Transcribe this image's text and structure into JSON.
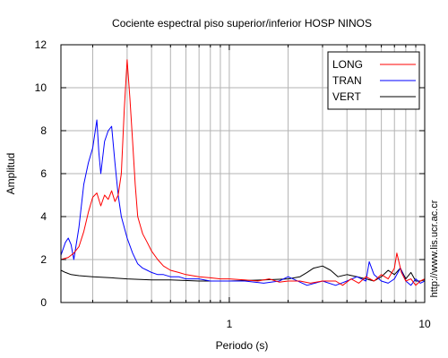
{
  "chart_data": {
    "type": "line",
    "title": "Cociente espectral piso superior/inferior  HOSP NINOS",
    "xlabel": "Periodo (s)",
    "ylabel": "Amplitud",
    "x_scale": "log",
    "xlim": [
      0.1375,
      10
    ],
    "ylim": [
      0,
      12
    ],
    "x_ticks": [
      {
        "value": 1,
        "label": "1"
      },
      {
        "value": 10,
        "label": "10"
      }
    ],
    "y_ticks": [
      {
        "value": 0,
        "label": "0"
      },
      {
        "value": 2,
        "label": "2"
      },
      {
        "value": 4,
        "label": "4"
      },
      {
        "value": 6,
        "label": "6"
      },
      {
        "value": 8,
        "label": "8"
      },
      {
        "value": 10,
        "label": "10"
      },
      {
        "value": 12,
        "label": "12"
      }
    ],
    "grid": true,
    "legend_position": "top-right",
    "side_text": "http://www.lis.ucr.ac.cr",
    "series": [
      {
        "name": "LONG",
        "color": "#ff0000",
        "x": [
          0.1375,
          0.15,
          0.16,
          0.17,
          0.18,
          0.19,
          0.2,
          0.21,
          0.22,
          0.23,
          0.24,
          0.25,
          0.26,
          0.27,
          0.28,
          0.29,
          0.3,
          0.31,
          0.32,
          0.33,
          0.34,
          0.36,
          0.38,
          0.4,
          0.43,
          0.46,
          0.5,
          0.55,
          0.6,
          0.7,
          0.8,
          0.9,
          1.0,
          1.2,
          1.4,
          1.6,
          1.8,
          2.0,
          2.3,
          2.6,
          3.0,
          3.5,
          3.8,
          4.2,
          4.6,
          5.0,
          5.5,
          6.0,
          6.5,
          7.0,
          7.2,
          7.6,
          8.0,
          8.5,
          9.0,
          9.5,
          10.0
        ],
        "y": [
          2.0,
          2.1,
          2.3,
          2.6,
          3.3,
          4.2,
          4.9,
          5.1,
          4.5,
          5.0,
          4.8,
          5.2,
          4.7,
          5.0,
          6.0,
          9.0,
          11.3,
          9.5,
          7.5,
          5.5,
          4.0,
          3.2,
          2.8,
          2.4,
          2.0,
          1.7,
          1.5,
          1.4,
          1.3,
          1.2,
          1.15,
          1.1,
          1.1,
          1.05,
          1.0,
          1.1,
          0.95,
          1.0,
          1.0,
          0.9,
          1.0,
          1.0,
          0.8,
          1.1,
          0.9,
          1.2,
          1.0,
          1.3,
          1.1,
          1.6,
          2.3,
          1.4,
          1.0,
          1.1,
          0.8,
          1.0,
          1.1
        ]
      },
      {
        "name": "TRAN",
        "color": "#0000ff",
        "x": [
          0.1375,
          0.145,
          0.15,
          0.155,
          0.16,
          0.17,
          0.18,
          0.19,
          0.2,
          0.21,
          0.215,
          0.22,
          0.23,
          0.24,
          0.25,
          0.26,
          0.27,
          0.28,
          0.3,
          0.32,
          0.34,
          0.36,
          0.38,
          0.4,
          0.43,
          0.46,
          0.5,
          0.55,
          0.6,
          0.7,
          0.8,
          0.9,
          1.0,
          1.2,
          1.5,
          1.8,
          2.0,
          2.5,
          3.0,
          3.5,
          4.0,
          4.5,
          5.0,
          5.2,
          5.5,
          6.0,
          6.5,
          7.0,
          7.5,
          8.0,
          8.5,
          9.0,
          9.5,
          10.0
        ],
        "y": [
          2.2,
          2.8,
          3.0,
          2.7,
          2.0,
          3.5,
          5.5,
          6.5,
          7.2,
          8.5,
          7.0,
          6.0,
          7.5,
          8.0,
          8.2,
          6.5,
          5.0,
          4.0,
          3.0,
          2.3,
          1.8,
          1.6,
          1.5,
          1.4,
          1.3,
          1.3,
          1.2,
          1.2,
          1.1,
          1.1,
          1.0,
          1.0,
          1.0,
          1.0,
          0.9,
          1.0,
          1.2,
          0.8,
          1.0,
          0.8,
          1.0,
          1.2,
          1.0,
          1.9,
          1.3,
          1.0,
          0.9,
          1.1,
          1.6,
          1.0,
          0.8,
          1.1,
          0.9,
          1.0
        ]
      },
      {
        "name": "VERT",
        "color": "#000000",
        "x": [
          0.1375,
          0.145,
          0.155,
          0.17,
          0.2,
          0.25,
          0.3,
          0.4,
          0.5,
          0.7,
          1.0,
          1.5,
          2.0,
          2.3,
          2.5,
          2.7,
          3.0,
          3.3,
          3.6,
          4.0,
          4.5,
          5.0,
          5.5,
          6.0,
          6.5,
          7.0,
          7.5,
          8.0,
          8.5,
          9.0,
          9.5,
          10.0
        ],
        "y": [
          1.5,
          1.4,
          1.3,
          1.25,
          1.2,
          1.15,
          1.1,
          1.05,
          1.05,
          1.0,
          1.0,
          1.05,
          1.1,
          1.2,
          1.4,
          1.6,
          1.7,
          1.5,
          1.2,
          1.3,
          1.2,
          1.1,
          1.0,
          1.2,
          1.5,
          1.3,
          1.6,
          1.1,
          1.4,
          1.0,
          1.0,
          1.05
        ]
      }
    ]
  }
}
